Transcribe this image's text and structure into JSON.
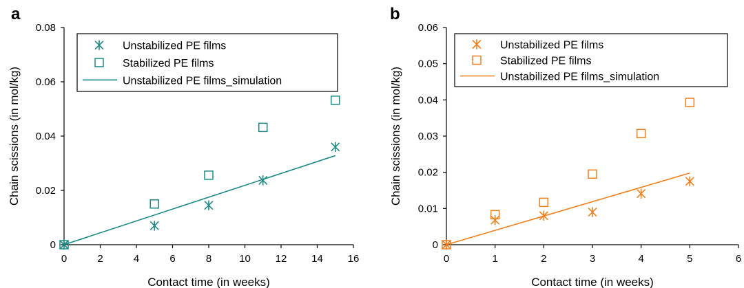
{
  "chart_data": [
    {
      "panel_label": "a",
      "type": "scatter",
      "xlabel": "Contact time (in weeks)",
      "ylabel": "Chain scissions (in mol/kg)",
      "xlim": [
        0,
        16
      ],
      "ylim": [
        0,
        0.08
      ],
      "xticks": [
        "0",
        "2",
        "4",
        "6",
        "8",
        "10",
        "12",
        "14",
        "16"
      ],
      "yticks": [
        "0",
        "0.02",
        "0.04",
        "0.06",
        "0.08"
      ],
      "legend_position": "top",
      "color": "#1a8a86",
      "series": [
        {
          "name": "Unstabilized PE films",
          "marker": "asterisk",
          "x": [
            0,
            5,
            8,
            11,
            15
          ],
          "y": [
            0,
            0.007,
            0.0145,
            0.0237,
            0.036
          ]
        },
        {
          "name": "Stabilized PE films",
          "marker": "square",
          "x": [
            0,
            5,
            8,
            11,
            15
          ],
          "y": [
            0,
            0.015,
            0.0256,
            0.0432,
            0.0532
          ]
        },
        {
          "name": "Unstabilized PE films_simulation",
          "marker": "line",
          "x": [
            0,
            15
          ],
          "y": [
            0,
            0.0328
          ]
        }
      ]
    },
    {
      "panel_label": "b",
      "type": "scatter",
      "xlabel": "Contact time (in weeks)",
      "ylabel": "Chain scissions (in mol/kg)",
      "xlim": [
        0,
        6
      ],
      "ylim": [
        0,
        0.06
      ],
      "xticks": [
        "0",
        "1",
        "2",
        "3",
        "4",
        "5",
        "6"
      ],
      "yticks": [
        "0",
        "0.01",
        "0.02",
        "0.03",
        "0.04",
        "0.05",
        "0.06"
      ],
      "legend_position": "top",
      "color": "#f07f1b",
      "series": [
        {
          "name": "Unstabilized PE films",
          "marker": "asterisk",
          "x": [
            0,
            1,
            2,
            3,
            4,
            5
          ],
          "y": [
            0,
            0.0068,
            0.008,
            0.009,
            0.0141,
            0.0175
          ]
        },
        {
          "name": "Stabilized PE films",
          "marker": "square",
          "x": [
            0,
            1,
            2,
            3,
            4,
            5
          ],
          "y": [
            0,
            0.0083,
            0.0117,
            0.0195,
            0.0307,
            0.0393
          ]
        },
        {
          "name": "Unstabilized PE films_simulation",
          "marker": "line",
          "x": [
            0,
            5
          ],
          "y": [
            0,
            0.0198
          ]
        }
      ]
    }
  ]
}
